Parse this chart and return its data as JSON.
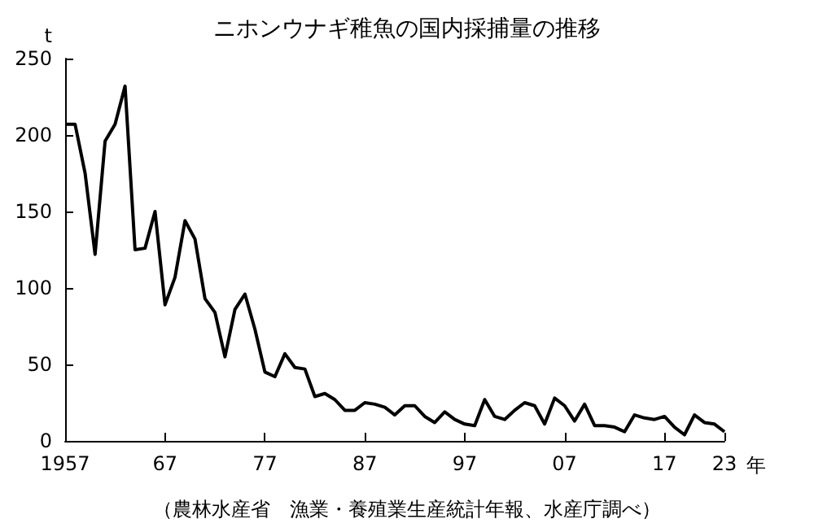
{
  "chart_data": {
    "type": "line",
    "title": "ニホンウナギ稚魚の国内採捕量の推移",
    "ylabel": "t",
    "annotations": [
      "（農林水産省　漁業・養殖業生産統計年報、水産庁調べ）"
    ],
    "x": [
      1957,
      1958,
      1959,
      1960,
      1961,
      1962,
      1963,
      1964,
      1965,
      1966,
      1967,
      1968,
      1969,
      1970,
      1971,
      1972,
      1973,
      1974,
      1975,
      1976,
      1977,
      1978,
      1979,
      1980,
      1981,
      1982,
      1983,
      1984,
      1985,
      1986,
      1987,
      1988,
      1989,
      1990,
      1991,
      1992,
      1993,
      1994,
      1995,
      1996,
      1997,
      1998,
      1999,
      2000,
      2001,
      2002,
      2003,
      2004,
      2005,
      2006,
      2007,
      2008,
      2009,
      2010,
      2011,
      2012,
      2013,
      2014,
      2015,
      2016,
      2017,
      2018,
      2019,
      2020,
      2021,
      2022,
      2023
    ],
    "series": [
      {
        "color": "#000000",
        "values": [
          207,
          207,
          175,
          122,
          196,
          207,
          232,
          125,
          126,
          150,
          89,
          107,
          144,
          132,
          93,
          84,
          55,
          86,
          96,
          73,
          45,
          42,
          57,
          48,
          47,
          29,
          31,
          27,
          20,
          20,
          25,
          24,
          22,
          17,
          23,
          23,
          16,
          12,
          19,
          14,
          11,
          10,
          27,
          16,
          14,
          20,
          25,
          23,
          11,
          28,
          23,
          13,
          24,
          10,
          10,
          9,
          6,
          17,
          15,
          14,
          16,
          9,
          4,
          17,
          12,
          11,
          6
        ]
      }
    ],
    "xlim": [
      1957,
      2023
    ],
    "xticks": [
      1957,
      {
        "value": 1967,
        "label": "67"
      },
      {
        "value": 1977,
        "label": "77"
      },
      {
        "value": 1987,
        "label": "87"
      },
      {
        "value": 1997,
        "label": "97"
      },
      {
        "value": 2007,
        "label": "07"
      },
      {
        "value": 2017,
        "label": "17"
      },
      {
        "value": 2023,
        "label": "23"
      }
    ],
    "xlabel": "年",
    "ylim": [
      0,
      250
    ],
    "yticks": [
      0,
      50,
      100,
      150,
      200,
      250
    ],
    "grid": false,
    "marker": "none",
    "line_style": "solid"
  }
}
